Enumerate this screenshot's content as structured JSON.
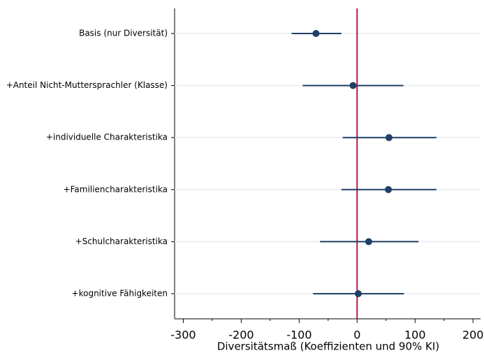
{
  "chart_data": {
    "type": "coefplot",
    "xlabel": "Diversitätsmaß (Koeffizienten und 90% KI)",
    "categories": [
      "Basis (nur Diversität)",
      "+Anteil Nicht-Muttersprachler (Klasse)",
      "+individuelle Charakteristika",
      "+Familiencharakteristika",
      "+Schulcharakteristika",
      "+kognitive Fähigkeiten"
    ],
    "values": [
      -71,
      -7,
      55,
      54,
      20,
      2
    ],
    "lower": [
      -113,
      -94,
      -25,
      -27,
      -64,
      -76
    ],
    "upper": [
      -27,
      80,
      137,
      137,
      106,
      81
    ],
    "color": "#1f3f66",
    "refline": 0,
    "refline_color": "#b0194a",
    "xlim": [
      -315,
      213
    ],
    "xticks": [
      -300,
      -200,
      -100,
      0,
      100,
      200
    ],
    "xminorticks": [
      -250,
      -150,
      -50,
      50,
      150
    ],
    "grid": true
  }
}
